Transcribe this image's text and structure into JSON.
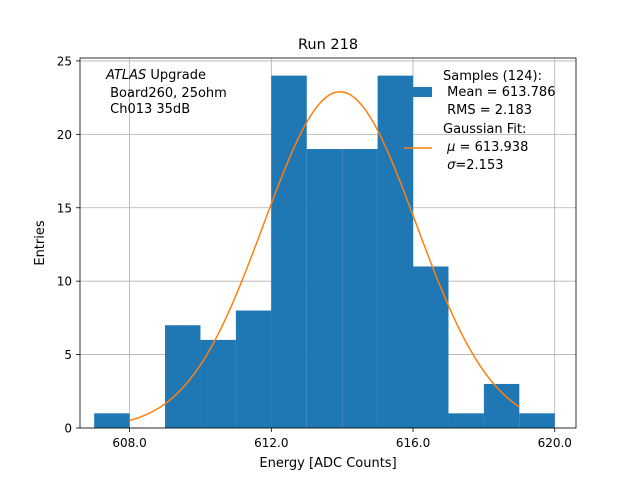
{
  "chart_data": {
    "type": "bar",
    "title": "Run 218",
    "xlabel": "Energy [ADC Counts]",
    "ylabel": "Entries",
    "xlim": [
      606.6,
      620.6
    ],
    "ylim": [
      0,
      25.2
    ],
    "xticks": [
      608,
      612,
      616,
      620
    ],
    "xtick_labels": [
      "608.0",
      "612.0",
      "616.0",
      "620.0"
    ],
    "yticks": [
      0,
      5,
      10,
      15,
      20,
      25
    ],
    "ytick_labels": [
      "0",
      "5",
      "10",
      "15",
      "20",
      "25"
    ],
    "grid": true,
    "histogram": {
      "name": "Samples (124):",
      "bin_edges": [
        607,
        608,
        609,
        610,
        611,
        612,
        613,
        614,
        615,
        616,
        617,
        618,
        619,
        620
      ],
      "counts": [
        1,
        0,
        7,
        6,
        8,
        24,
        19,
        19,
        24,
        11,
        1,
        3,
        1
      ],
      "color": "#1f77b4"
    },
    "fit": {
      "name": "Gaussian Fit:",
      "mu": 613.938,
      "sigma": 2.153,
      "amplitude": 22.9,
      "x_range": [
        608,
        619
      ],
      "color": "#ff7f0e"
    },
    "annotation": {
      "line1_italic": "ATLAS",
      "line1_rest": " Upgrade",
      "line2": " Board260, 25ohm",
      "line3": " Ch013 35dB"
    },
    "legend": {
      "placement": "top-right",
      "samples_title": "Samples (124):",
      "samples_mean": " Mean = 613.786",
      "samples_rms": " RMS = 2.183",
      "fit_title": "Gaussian Fit:",
      "fit_mu_symbol": "μ",
      "fit_mu_rest": " = 613.938",
      "fit_sigma_symbol": "σ",
      "fit_sigma_rest": "=2.153"
    }
  }
}
